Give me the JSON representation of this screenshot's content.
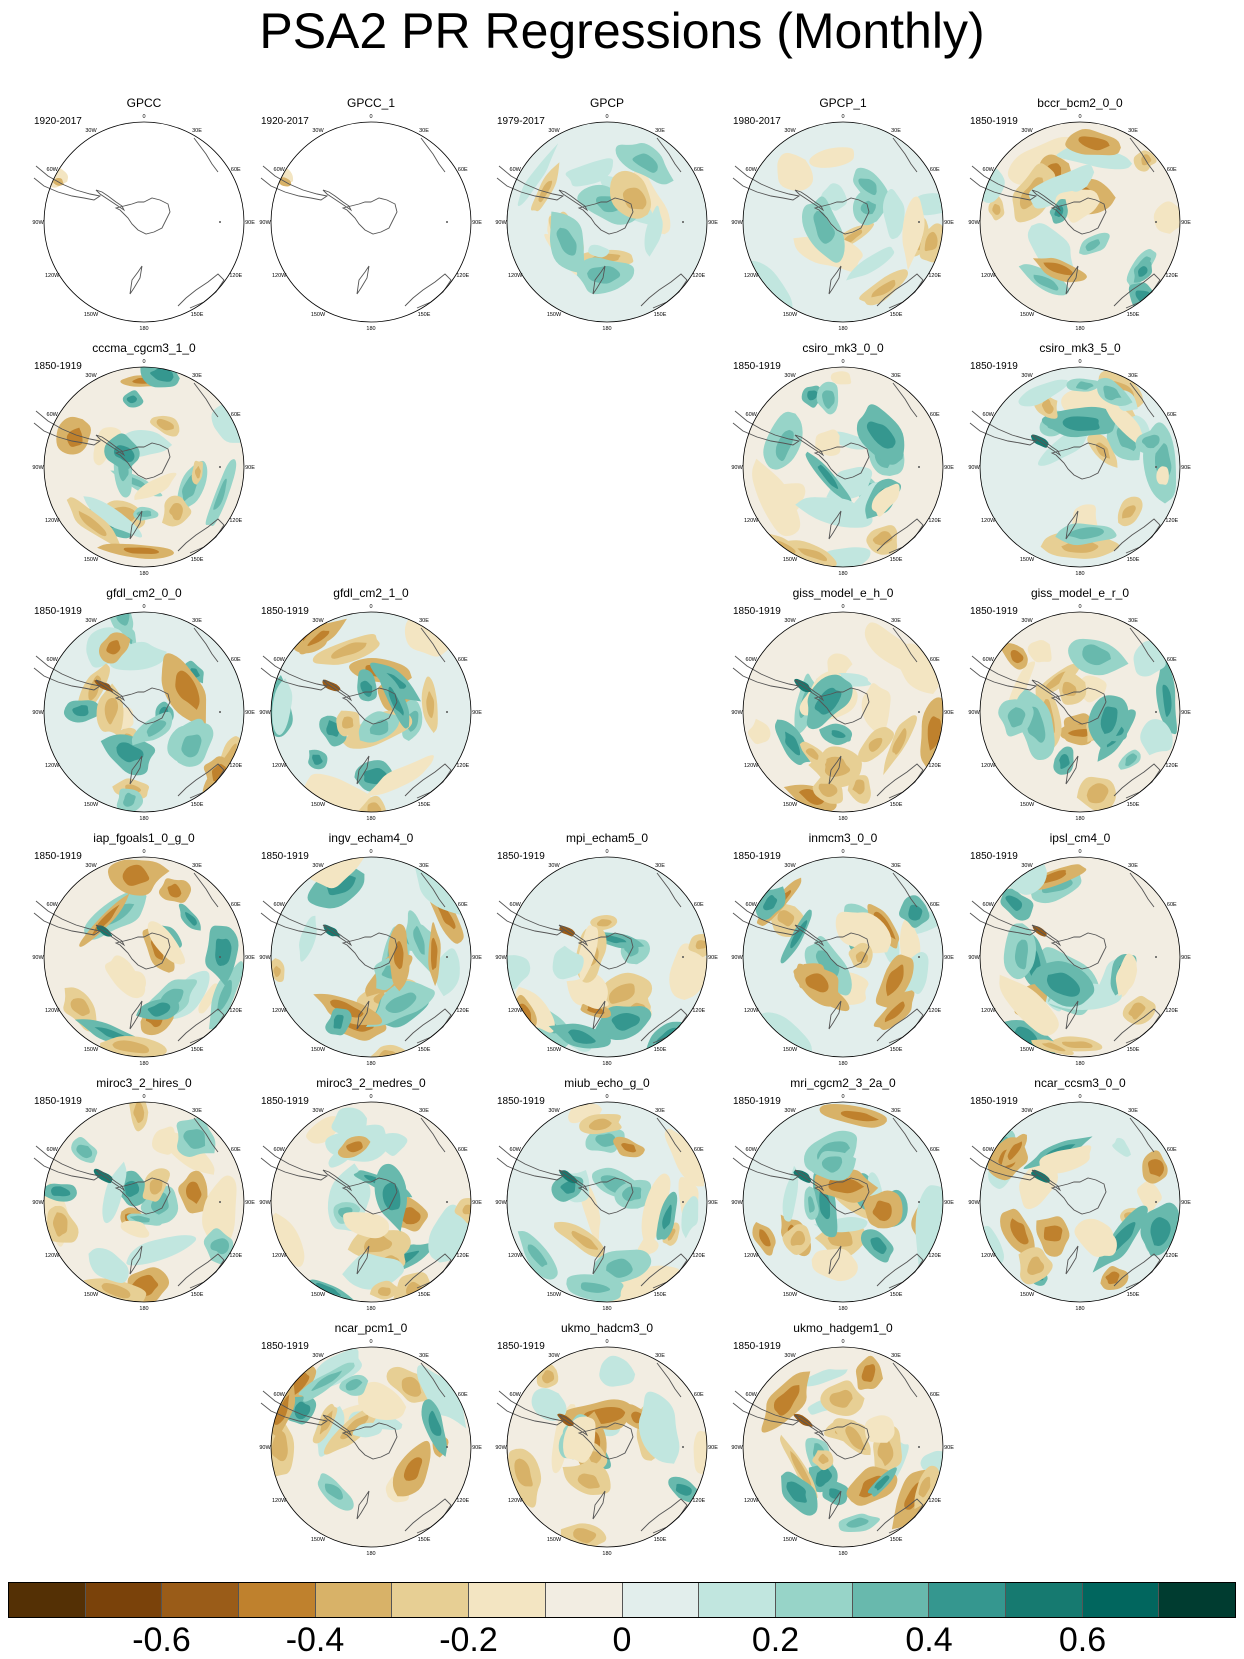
{
  "title": "PSA2 PR Regressions (Monthly)",
  "lon_labels": [
    "0",
    "30E",
    "60E",
    "90E",
    "120E",
    "150E",
    "180",
    "150W",
    "120W",
    "90W",
    "60W",
    "30W"
  ],
  "colors": {
    "coast": "#555555",
    "ocean_blank": "#ffffff"
  },
  "colorbar": {
    "colors": [
      "#543005",
      "#7a420a",
      "#9a5c18",
      "#bf812d",
      "#d8b268",
      "#e7cf94",
      "#f3e5c2",
      "#f2ede2",
      "#e2eeec",
      "#c1e6df",
      "#97d4c8",
      "#68b9ad",
      "#35978f",
      "#167a70",
      "#01665e",
      "#003c30"
    ],
    "ticks": [
      "-0.6",
      "-0.4",
      "-0.2",
      "0",
      "0.2",
      "0.4",
      "0.6"
    ]
  },
  "panels": [
    {
      "name": "GPCC",
      "period": "1920-2017",
      "row": 0,
      "col": 0,
      "style": "blank",
      "seed": 1
    },
    {
      "name": "GPCC_1",
      "period": "1920-2017",
      "row": 0,
      "col": 1,
      "style": "blank",
      "seed": 2
    },
    {
      "name": "GPCP",
      "period": "1979-2017",
      "row": 0,
      "col": 2,
      "style": "obs",
      "seed": 3
    },
    {
      "name": "GPCP_1",
      "period": "1980-2017",
      "row": 0,
      "col": 3,
      "style": "obs",
      "seed": 4
    },
    {
      "name": "bccr_bcm2_0_0",
      "period": "1850-1919",
      "row": 0,
      "col": 4,
      "style": "model",
      "seed": 5
    },
    {
      "name": "cccma_cgcm3_1_0",
      "period": "1850-1919",
      "row": 1,
      "col": 0,
      "style": "model",
      "seed": 6
    },
    {
      "name": "csiro_mk3_0_0",
      "period": "1850-1919",
      "row": 1,
      "col": 3,
      "style": "model",
      "seed": 7
    },
    {
      "name": "csiro_mk3_5_0",
      "period": "1850-1919",
      "row": 1,
      "col": 4,
      "style": "model",
      "seed": 8
    },
    {
      "name": "gfdl_cm2_0_0",
      "period": "1850-1919",
      "row": 2,
      "col": 0,
      "style": "model",
      "seed": 9
    },
    {
      "name": "gfdl_cm2_1_0",
      "period": "1850-1919",
      "row": 2,
      "col": 1,
      "style": "model",
      "seed": 10
    },
    {
      "name": "giss_model_e_h_0",
      "period": "1850-1919",
      "row": 2,
      "col": 3,
      "style": "model",
      "seed": 11
    },
    {
      "name": "giss_model_e_r_0",
      "period": "1850-1919",
      "row": 2,
      "col": 4,
      "style": "model",
      "seed": 12
    },
    {
      "name": "iap_fgoals1_0_g_0",
      "period": "1850-1919",
      "row": 3,
      "col": 0,
      "style": "model",
      "seed": 13
    },
    {
      "name": "ingv_echam4_0",
      "period": "1850-1919",
      "row": 3,
      "col": 1,
      "style": "model",
      "seed": 14
    },
    {
      "name": "mpi_echam5_0",
      "period": "1850-1919",
      "row": 3,
      "col": 2,
      "style": "model",
      "seed": 15
    },
    {
      "name": "inmcm3_0_0",
      "period": "1850-1919",
      "row": 3,
      "col": 3,
      "style": "model",
      "seed": 16
    },
    {
      "name": "ipsl_cm4_0",
      "period": "1850-1919",
      "row": 3,
      "col": 4,
      "style": "model",
      "seed": 17
    },
    {
      "name": "miroc3_2_hires_0",
      "period": "1850-1919",
      "row": 4,
      "col": 0,
      "style": "model",
      "seed": 18
    },
    {
      "name": "miroc3_2_medres_0",
      "period": "1850-1919",
      "row": 4,
      "col": 1,
      "style": "model",
      "seed": 19
    },
    {
      "name": "miub_echo_g_0",
      "period": "1850-1919",
      "row": 4,
      "col": 2,
      "style": "model",
      "seed": 20
    },
    {
      "name": "mri_cgcm2_3_2a_0",
      "period": "1850-1919",
      "row": 4,
      "col": 3,
      "style": "model",
      "seed": 21
    },
    {
      "name": "ncar_ccsm3_0_0",
      "period": "1850-1919",
      "row": 4,
      "col": 4,
      "style": "model",
      "seed": 22
    },
    {
      "name": "ncar_pcm1_0",
      "period": "1850-1919",
      "row": 5,
      "col": 1,
      "style": "model",
      "seed": 23
    },
    {
      "name": "ukmo_hadcm3_0",
      "period": "1850-1919",
      "row": 5,
      "col": 2,
      "style": "model",
      "seed": 24
    },
    {
      "name": "ukmo_hadgem1_0",
      "period": "1850-1919",
      "row": 5,
      "col": 3,
      "style": "model",
      "seed": 25
    }
  ]
}
